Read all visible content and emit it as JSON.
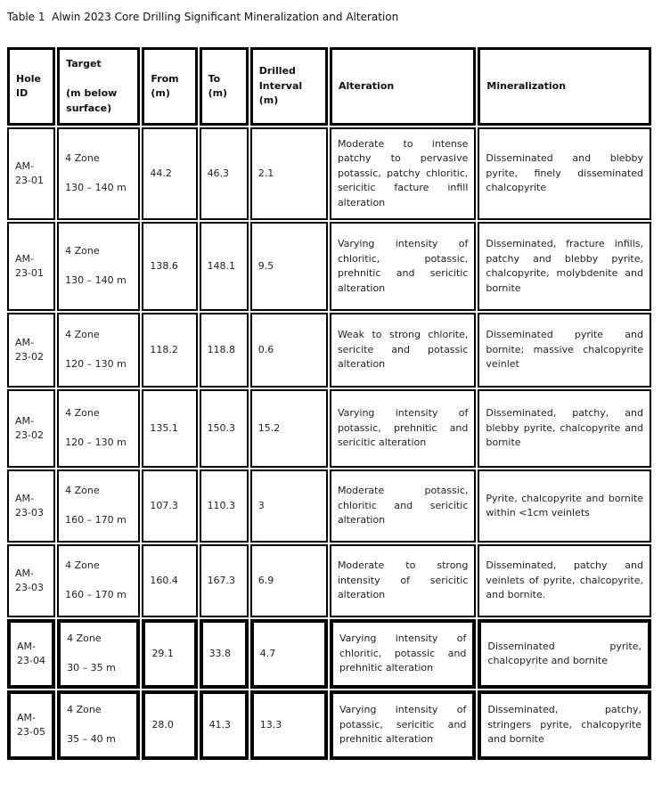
{
  "title": "Table 1  Alwin 2023 Core Drilling Significant Mineralization and Alteration",
  "table": {
    "headers": {
      "hole_id": "Hole ID",
      "target": "Target\n\n(m below surface)",
      "from": "From (m)",
      "to": "To (m)",
      "interval": "Drilled Interval (m)",
      "alteration": "Alteration",
      "mineralization": "Mineralization"
    },
    "rows": [
      {
        "hole_id": "AM-23-01",
        "target": "4 Zone\n\n130 – 140 m",
        "from": "44.2",
        "to": "46.3",
        "interval": "2.1",
        "alteration": "Moderate to intense patchy to pervasive potassic, patchy chloritic, sericitic facture infill alteration",
        "mineralization": "Disseminated and blebby pyrite, finely disseminated chalcopyrite"
      },
      {
        "hole_id": "AM-23-01",
        "target": "4 Zone\n\n130 – 140 m",
        "from": "138.6",
        "to": "148.1",
        "interval": "9.5",
        "alteration": "Varying intensity of chloritic, potassic, prehnitic and sericitic alteration",
        "mineralization": "Disseminated, fracture infills, patchy and blebby pyrite, chalcopyrite, molybdenite and bornite"
      },
      {
        "hole_id": "AM-23-02",
        "target": "4 Zone\n\n120 – 130 m",
        "from": "118.2",
        "to": "118.8",
        "interval": "0.6",
        "alteration": "Weak to strong chlorite, sericite and potassic alteration",
        "mineralization": "Disseminated pyrite and bornite; massive chalcopyrite veinlet"
      },
      {
        "hole_id": "AM-23-02",
        "target": "4 Zone\n\n120 – 130 m",
        "from": "135.1",
        "to": "150.3",
        "interval": "15.2",
        "alteration": "Varying intensity of potassic, prehnitic and sericitic alteration",
        "mineralization": "Disseminated, patchy, and blebby pyrite, chalcopyrite and bornite"
      },
      {
        "hole_id": "AM-23-03",
        "target": "4 Zone\n\n160 – 170 m",
        "from": "107.3",
        "to": "110.3",
        "interval": "3",
        "alteration": "Moderate potassic, chloritic and sericitic alteration",
        "mineralization": "Pyrite, chalcopyrite and bornite within <1cm veinlets"
      },
      {
        "hole_id": "AM-23-03",
        "target": "4 Zone\n\n160 – 170 m",
        "from": "160.4",
        "to": "167.3",
        "interval": "6.9",
        "alteration": "Moderate to strong intensity of sericitic alteration",
        "mineralization": "Disseminated, patchy and veinlets of pyrite, chalcopyrite, and bornite."
      },
      {
        "hole_id": "AM-23-04",
        "target": "4 Zone\n\n30 – 35 m",
        "from": "29.1",
        "to": "33.8",
        "interval": "4.7",
        "alteration": "Varying intensity of chloritic, potassic and prehnitic alteration",
        "mineralization": "Disseminated pyrite, chalcopyrite and bornite"
      },
      {
        "hole_id": "AM-23-05",
        "target": "4 Zone\n\n35 – 40 m",
        "from": "28.0",
        "to": "41.3",
        "interval": "13.3",
        "alteration": "Varying intensity of potassic, sericitic and prehnitic alteration",
        "mineralization": "Disseminated, patchy, stringers pyrite, chalcopyrite and bornite"
      }
    ]
  }
}
